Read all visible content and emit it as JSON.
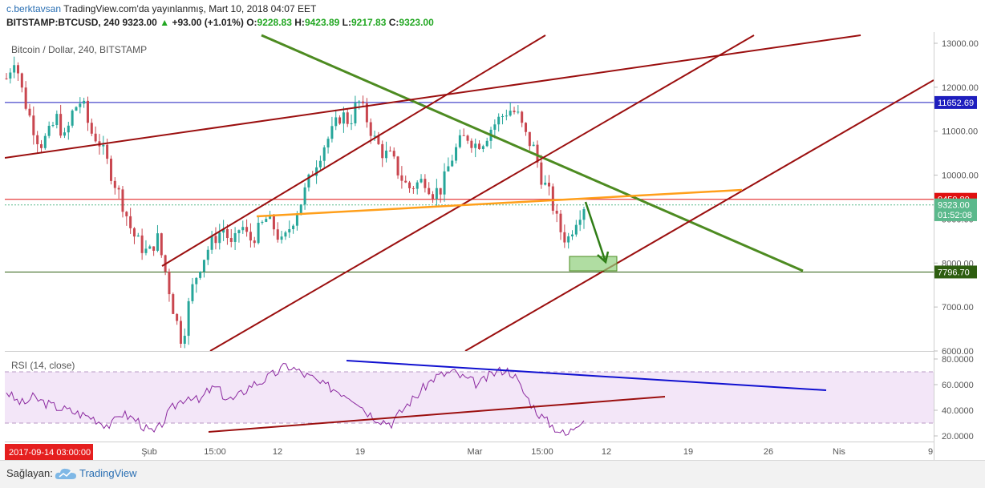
{
  "header": {
    "author": "c.berktavsan",
    "published": "TradingView.com'da yayınlanmış, Mart 10, 2018 04:07 EET",
    "symbol": "BITSTAMP:BTCUSD, 240",
    "last": "9323.00",
    "change_arrow": "▲",
    "change": "+93.00 (+1.01%)",
    "o_label": "O:",
    "o": "9228.83",
    "h_label": "H:",
    "h": "9423.89",
    "l_label": "L:",
    "l": "9217.83",
    "c_label": "C:",
    "c": "9323.00"
  },
  "chart_data": [
    {
      "type": "candlestick",
      "title": "Bitcoin / Dollar, 240, BITSTAMP",
      "ylim": [
        5950,
        13150
      ],
      "y_ticks": [
        "13000.00",
        "12000.00",
        "11000.00",
        "10000.00",
        "9000.00",
        "8000.00",
        "7000.00",
        "6000.00"
      ],
      "x_ticks": [
        "Şub",
        "15:00",
        "12",
        "19",
        "Mar",
        "15:00",
        "12",
        "19",
        "26",
        "Nis",
        "9"
      ],
      "price_labels": [
        {
          "text": "11652.69",
          "value": 11652.69,
          "color": "#1e1ebe"
        },
        {
          "text": "9450.80",
          "value": 9450.8,
          "color": "#e01010"
        },
        {
          "text": "9323.00",
          "value": 9323,
          "color": "#5bb98c"
        },
        {
          "text": "01:52:08",
          "value": 9100,
          "color": "#5bb98c"
        },
        {
          "text": "7796.70",
          "value": 7796.7,
          "color": "#2e5e10"
        }
      ],
      "horizontal_lines": [
        {
          "value": 11652.69,
          "color": "#1e1ebe"
        },
        {
          "value": 9450.8,
          "color": "#e01010"
        },
        {
          "value": 7796.7,
          "color": "#2e5e10"
        }
      ],
      "close_series": [
        12200,
        12700,
        11800,
        11200,
        10700,
        10900,
        11300,
        10800,
        11500,
        11700,
        11000,
        10800,
        10300,
        9800,
        9300,
        8700,
        8400,
        8200,
        8600,
        7800,
        6900,
        6200,
        7300,
        7900,
        8300,
        8600,
        8800,
        8300,
        8900,
        8500,
        8700,
        9000,
        8800,
        8400,
        8900,
        9300,
        9800,
        10300,
        10700,
        11000,
        11400,
        11200,
        11700,
        11300,
        10800,
        10500,
        10400,
        10000,
        9700,
        9800,
        9900,
        9600,
        9700,
        10300,
        10700,
        10900,
        10700,
        10800,
        11100,
        11300,
        11500,
        11400,
        10900,
        10600,
        9900,
        9500,
        8800,
        8500,
        9000,
        9323
      ],
      "close_range": {
        "from_date": "2018-01-29",
        "to_date": "2018-03-10"
      }
    },
    {
      "type": "line",
      "title": "RSI (14, close)",
      "ylim": [
        15,
        80
      ],
      "y_ticks": [
        "80.0000",
        "60.0000",
        "40.0000",
        "20.0000"
      ],
      "bands": [
        70,
        30
      ],
      "values": [
        55,
        48,
        45,
        50,
        47,
        44,
        42,
        40,
        38,
        36,
        34,
        30,
        28,
        38,
        35,
        32,
        25,
        22,
        32,
        42,
        48,
        52,
        46,
        55,
        58,
        50,
        48,
        54,
        60,
        62,
        66,
        70,
        75,
        72,
        68,
        65,
        60,
        58,
        55,
        52,
        48,
        40,
        35,
        32,
        30,
        38,
        46,
        52,
        60,
        66,
        68,
        70,
        66,
        63,
        60,
        66,
        70,
        72,
        68,
        55,
        45,
        36,
        30,
        25,
        20,
        28,
        35
      ]
    }
  ],
  "corner_date": "2017-09-14 03:00:00",
  "footer": {
    "provider": "Sağlayan:",
    "brand": "TradingView"
  },
  "colors": {
    "up": "#26a69a",
    "down": "#c9464f",
    "green_trend": "#4d8b21",
    "red_channel": "#9b0f0f",
    "orange": "#ff9f1a",
    "rsi_fill": "#f3e6f8",
    "rsi_line": "#8c2aa0"
  }
}
